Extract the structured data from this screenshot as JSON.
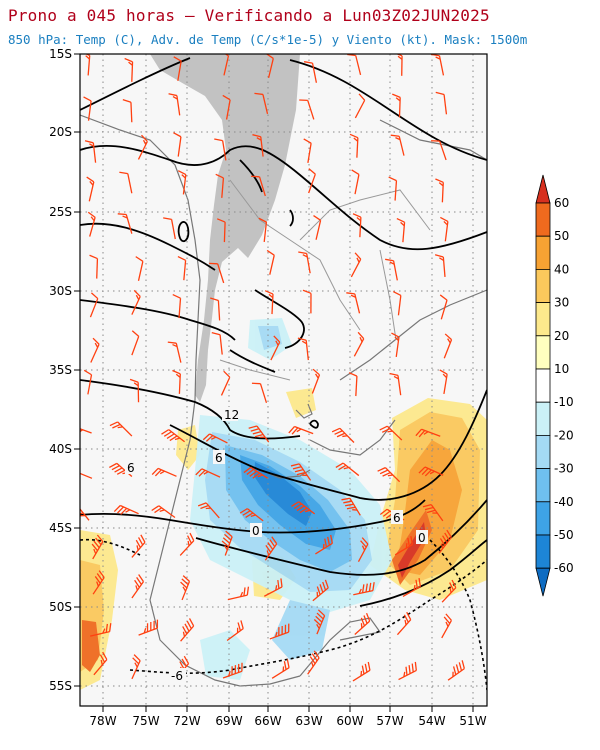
{
  "header": {
    "title": "Prono a 045 horas – Verificando a Lun03Z02JUN2025",
    "subtitle": "850 hPa: Temp (C), Adv. de Temp (C/s*1e-5) y Viento (kt). Mask: 1500m"
  },
  "map": {
    "lat_labels": [
      "15S",
      "20S",
      "25S",
      "30S",
      "35S",
      "40S",
      "45S",
      "50S",
      "55S"
    ],
    "lon_labels": [
      "78W",
      "75W",
      "72W",
      "69W",
      "66W",
      "63W",
      "60W",
      "57W",
      "54W",
      "51W"
    ],
    "contour_labels": [
      "12",
      "6",
      "6",
      "6",
      "0",
      "0",
      "-6"
    ],
    "mask_color": "#c0c0c0",
    "contour_color": "#000000",
    "wind_barb_color": "#ff4010"
  },
  "colorbar": {
    "labels": [
      "60",
      "50",
      "40",
      "30",
      "20",
      "10",
      "-10",
      "-20",
      "-30",
      "-40",
      "-50",
      "-60"
    ],
    "colors": [
      "#d7301f",
      "#ef6a1e",
      "#f7a233",
      "#fbc85c",
      "#fde98c",
      "#ffffbf",
      "#ffffff",
      "#cbf1f7",
      "#a4daf4",
      "#6fc0ef",
      "#3ea3e6",
      "#1d85d6",
      "#0e6cc2"
    ]
  }
}
